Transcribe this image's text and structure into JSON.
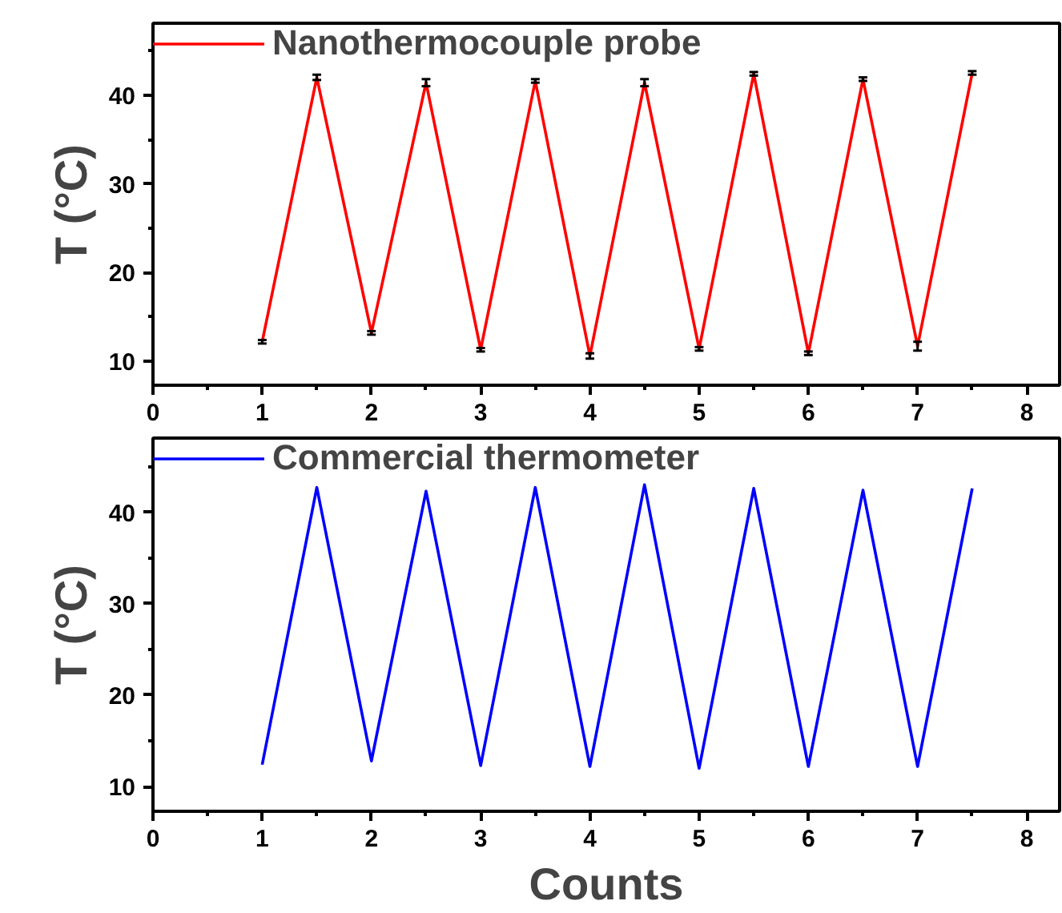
{
  "chart_data": [
    {
      "type": "line",
      "x": [
        1,
        1.5,
        2,
        2.5,
        3,
        3.5,
        4,
        4.5,
        5,
        5.5,
        6,
        6.5,
        7,
        7.5
      ],
      "ylabel": "T (°C)",
      "xlim": [
        0,
        8.3
      ],
      "xticks": [
        0,
        1,
        2,
        3,
        4,
        5,
        6,
        7,
        8
      ],
      "ylim": [
        7.3,
        48.1
      ],
      "yticks": [
        10,
        20,
        30,
        40
      ],
      "legend": "top left",
      "grid": false,
      "marker": "none",
      "line_style": "solid",
      "series": [
        {
          "name": "Nanothermocouple probe",
          "color": "#ff0000",
          "values": [
            12.2,
            42.0,
            13.2,
            41.4,
            11.3,
            41.6,
            10.6,
            41.4,
            11.4,
            42.4,
            10.9,
            41.8,
            11.7,
            42.5
          ],
          "errors": [
            0.2,
            0.3,
            0.2,
            0.4,
            0.2,
            0.2,
            0.3,
            0.4,
            0.2,
            0.2,
            0.2,
            0.2,
            0.5,
            0.2
          ]
        }
      ]
    },
    {
      "type": "line",
      "x": [
        1,
        1.5,
        2,
        2.5,
        3,
        3.5,
        4,
        4.5,
        5,
        5.5,
        6,
        6.5,
        7,
        7.5
      ],
      "xlabel": "Counts",
      "ylabel": "T (°C)",
      "xlim": [
        0,
        8.3
      ],
      "xticks": [
        0,
        1,
        2,
        3,
        4,
        5,
        6,
        7,
        8
      ],
      "ylim": [
        7.3,
        48.1
      ],
      "yticks": [
        10,
        20,
        30,
        40
      ],
      "legend": "top left",
      "grid": false,
      "marker": "none",
      "line_style": "solid",
      "series": [
        {
          "name": "Commercial thermometer",
          "color": "#0000ff",
          "values": [
            12.4,
            42.7,
            12.8,
            42.3,
            12.3,
            42.7,
            12.2,
            43.0,
            12.0,
            42.6,
            12.2,
            42.4,
            12.2,
            42.6
          ]
        }
      ]
    }
  ]
}
